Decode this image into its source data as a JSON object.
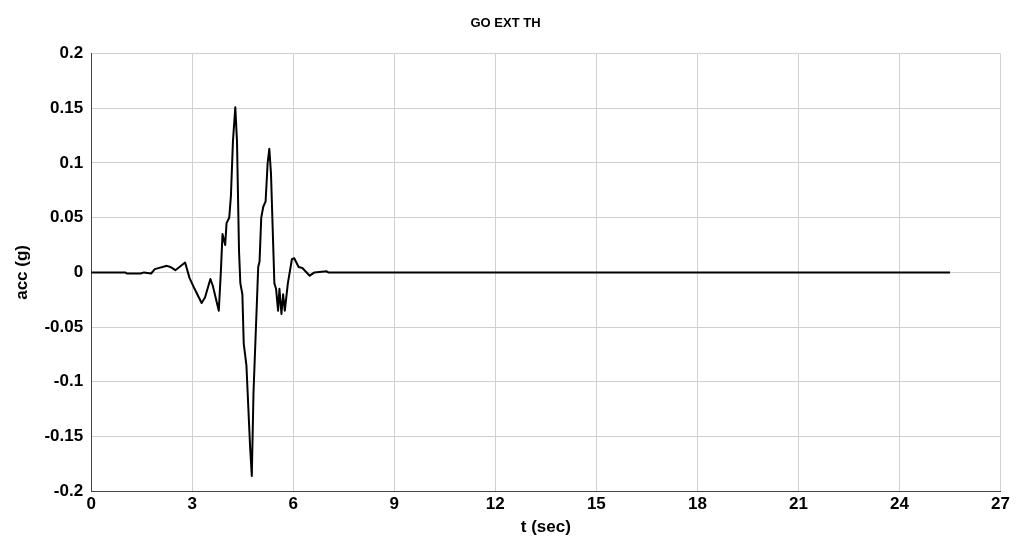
{
  "chart_data": {
    "type": "line",
    "title": "GO EXT TH",
    "xlabel": "t (sec)",
    "ylabel": "acc (g)",
    "x": [
      0,
      1.01,
      1.06,
      1.47,
      1.57,
      1.78,
      1.89,
      2.25,
      2.35,
      2.5,
      2.79,
      2.92,
      3.07,
      3.28,
      3.38,
      3.54,
      3.61,
      3.79,
      3.85,
      3.9,
      3.98,
      4.02,
      4.1,
      4.15,
      4.21,
      4.28,
      4.33,
      4.39,
      4.43,
      4.49,
      4.53,
      4.61,
      4.72,
      4.77,
      4.82,
      4.93,
      4.96,
      5.0,
      5.05,
      5.11,
      5.18,
      5.24,
      5.29,
      5.34,
      5.39,
      5.44,
      5.49,
      5.55,
      5.59,
      5.65,
      5.7,
      5.75,
      5.84,
      5.96,
      6.03,
      6.16,
      6.27,
      6.49,
      6.63,
      6.99,
      7.04,
      25.5
    ],
    "series": [
      {
        "color": "#000000",
        "values": [
          0,
          0,
          -0.001,
          -0.001,
          0,
          -0.001,
          0.003,
          0.006,
          0.005,
          0.002,
          0.009,
          -0.005,
          -0.015,
          -0.028,
          -0.023,
          -0.006,
          -0.012,
          -0.035,
          0,
          0.035,
          0.025,
          0.045,
          0.05,
          0.07,
          0.12,
          0.151,
          0.12,
          0.02,
          -0.01,
          -0.02,
          -0.065,
          -0.085,
          -0.16,
          -0.186,
          -0.11,
          -0.02,
          0.005,
          0.01,
          0.05,
          0.06,
          0.065,
          0.1,
          0.113,
          0.09,
          0.04,
          -0.01,
          -0.015,
          -0.035,
          -0.015,
          -0.038,
          -0.02,
          -0.035,
          -0.01,
          0.012,
          0.013,
          0.005,
          0.004,
          -0.003,
          0,
          0.001,
          0,
          0
        ]
      }
    ],
    "xlim": [
      0,
      27
    ],
    "xticks": [
      0,
      3,
      6,
      9,
      12,
      15,
      18,
      21,
      24,
      27
    ],
    "ylim": [
      -0.2,
      0.2
    ],
    "yticks": [
      -0.2,
      -0.15,
      -0.1,
      -0.05,
      0,
      0.05,
      0.1,
      0.15,
      0.2
    ],
    "grid": true,
    "legend": false,
    "marker": "none",
    "line_style": "solid"
  }
}
